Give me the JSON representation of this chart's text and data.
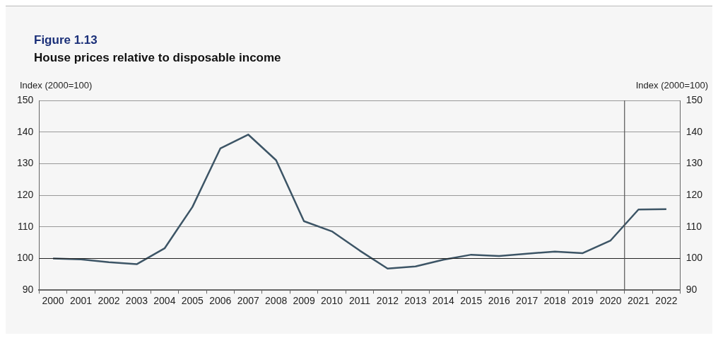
{
  "chart_data": {
    "type": "line",
    "title": "Figure 1.13",
    "subtitle": "House prices relative to disposable income",
    "ylabel": "Index (2000=100)",
    "y2label": "Index (2000=100)",
    "categories": [
      "2000",
      "2001",
      "2002",
      "2003",
      "2004",
      "2005",
      "2006",
      "2007",
      "2008",
      "2009",
      "2010",
      "2011",
      "2012",
      "2013",
      "2014",
      "2015",
      "2016",
      "2017",
      "2018",
      "2019",
      "2020",
      "2021",
      "2022"
    ],
    "series": [
      {
        "color": "#3d5566",
        "values": [
          100,
          99.7,
          98.8,
          98.2,
          103.2,
          116.3,
          134.8,
          139.2,
          131.1,
          111.8,
          108.6,
          102.5,
          96.8,
          97.5,
          99.6,
          101.2,
          100.8,
          101.5,
          102.2,
          101.7,
          105.7,
          115.5,
          115.6
        ]
      }
    ],
    "ylim": [
      90,
      150
    ],
    "yticks": [
      90,
      100,
      110,
      120,
      130,
      140,
      150
    ],
    "y2lim": [
      90,
      150
    ],
    "y2ticks": [
      90,
      100,
      110,
      120,
      130,
      140,
      150
    ],
    "ref_lines": [
      {
        "axis": "y",
        "value": 100,
        "color": "#222222"
      },
      {
        "axis": "x",
        "value": "2021",
        "color": "#555555"
      }
    ],
    "grid": "y",
    "legend": false,
    "marker": "none",
    "line_style": "solid"
  }
}
